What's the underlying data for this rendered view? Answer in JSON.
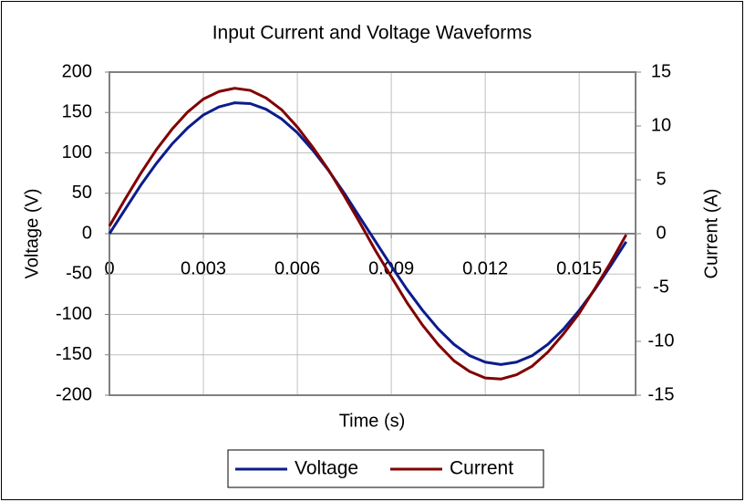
{
  "chart_data": {
    "type": "line",
    "title": "Input Current and Voltage Waveforms",
    "x_label": "Time (s)",
    "y_label": "Voltage (V)",
    "y2_label": "Current (A)",
    "x": [
      0,
      0.0005,
      0.001,
      0.0015,
      0.002,
      0.0025,
      0.003,
      0.0035,
      0.004,
      0.0045,
      0.005,
      0.0055,
      0.006,
      0.0065,
      0.007,
      0.0075,
      0.008,
      0.0085,
      0.009,
      0.0095,
      0.01,
      0.0105,
      0.011,
      0.0115,
      0.012,
      0.0125,
      0.013,
      0.0135,
      0.014,
      0.0145,
      0.015,
      0.0155,
      0.016,
      0.0165
    ],
    "series": [
      {
        "name": "Voltage",
        "color": "#0b1c8c",
        "values": [
          0,
          30,
          60,
          87,
          111,
          131,
          147,
          157,
          162,
          161,
          154,
          142,
          125,
          103,
          78,
          50,
          20,
          -10,
          -40,
          -69,
          -95,
          -118,
          -137,
          -151,
          -159,
          -162,
          -159,
          -151,
          -137,
          -118,
          -95,
          -69,
          -40,
          -10
        ]
      },
      {
        "name": "Current",
        "color": "#800000",
        "axis": "y2",
        "values": [
          0.7,
          3.2,
          5.6,
          7.8,
          9.7,
          11.3,
          12.5,
          13.2,
          13.5,
          13.3,
          12.6,
          11.5,
          9.9,
          8.0,
          5.9,
          3.5,
          1.0,
          -1.6,
          -4.0,
          -6.4,
          -8.5,
          -10.3,
          -11.8,
          -12.8,
          -13.4,
          -13.5,
          -13.1,
          -12.3,
          -11.0,
          -9.3,
          -7.4,
          -5.1,
          -2.7,
          -0.1
        ]
      }
    ],
    "xlim": [
      0,
      0.0168
    ],
    "xticks": [
      0,
      0.003,
      0.006,
      0.009,
      0.012,
      0.015
    ],
    "ylim": [
      -200,
      200
    ],
    "yticks": [
      -200,
      -150,
      -100,
      -50,
      0,
      50,
      100,
      150,
      200
    ],
    "y2lim": [
      -15,
      15
    ],
    "y2ticks": [
      -15,
      -10,
      -5,
      0,
      5,
      10,
      15
    ],
    "grid": true,
    "legend": "bottom"
  }
}
